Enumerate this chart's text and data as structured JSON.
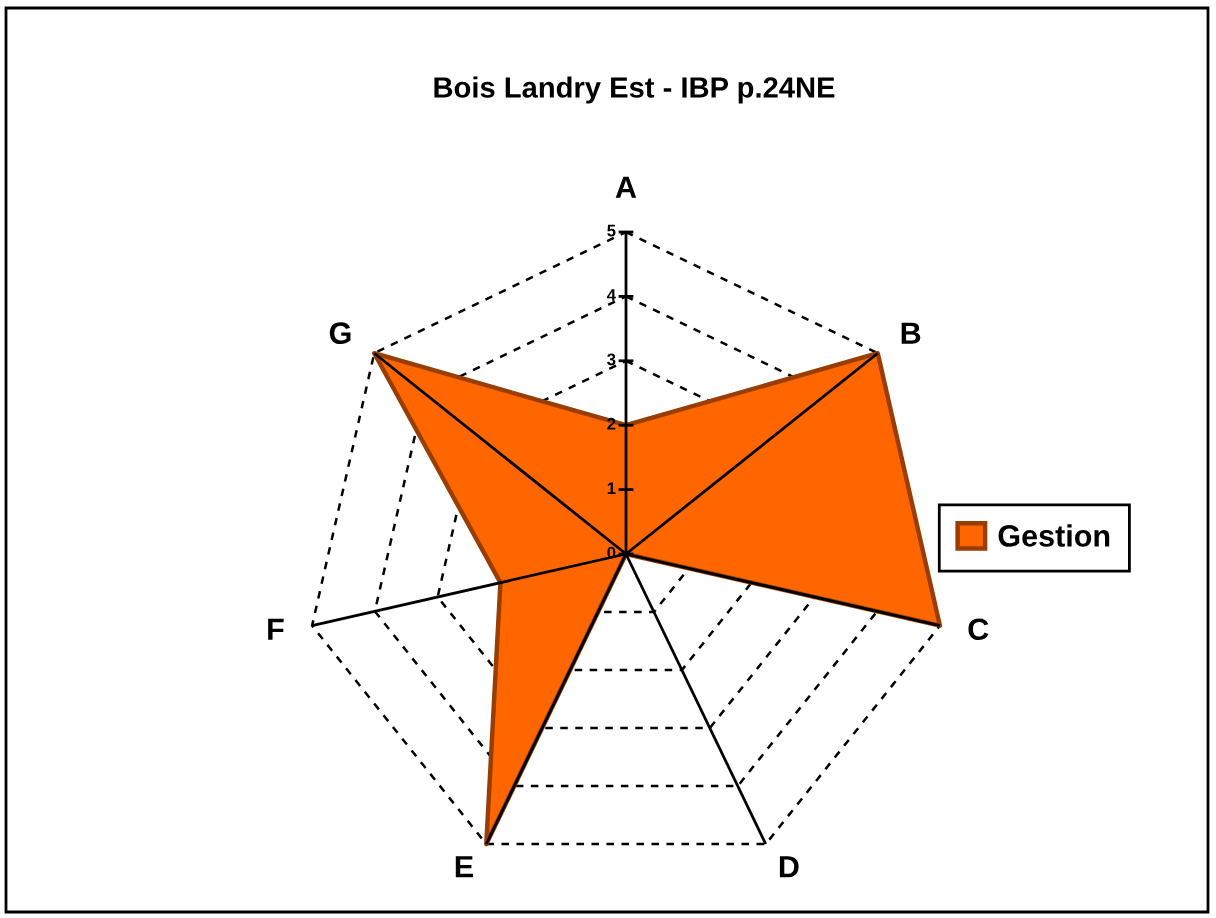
{
  "chart_data": {
    "type": "radar",
    "title": "Bois Landry Est - IBP p.24NE",
    "categories": [
      "A",
      "B",
      "C",
      "D",
      "E",
      "F",
      "G"
    ],
    "series": [
      {
        "name": "Gestion",
        "color": "#ff6600",
        "values": [
          2,
          5,
          5,
          0,
          5,
          2,
          5
        ]
      }
    ],
    "ylim": [
      0,
      5
    ],
    "yticks": [
      0,
      1,
      2,
      3,
      4,
      5
    ],
    "grid": true,
    "legend": "right"
  }
}
